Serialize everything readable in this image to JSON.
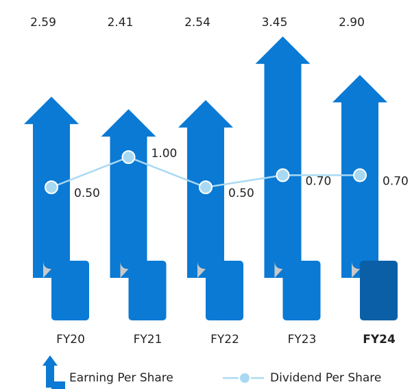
{
  "chart_data": {
    "type": "arrow-bar-line",
    "categories": [
      "FY20",
      "FY21",
      "FY22",
      "FY23",
      "FY24"
    ],
    "series": [
      {
        "name": "Earning Per Share",
        "color": "#0a7ad4",
        "highlight_color": "#0b5fa6",
        "values": [
          2.59,
          2.41,
          2.54,
          3.45,
          2.9
        ],
        "value_labels": [
          "2.59",
          "2.41",
          "2.54",
          "3.45",
          "2.90"
        ]
      },
      {
        "name": "Dividend Per Share",
        "color": "#a9d9f2",
        "values": [
          0.5,
          1.0,
          0.5,
          0.7,
          0.7
        ],
        "value_labels": [
          "0.50",
          "1.00",
          "0.50",
          "0.70",
          "0.70"
        ]
      }
    ]
  }
}
